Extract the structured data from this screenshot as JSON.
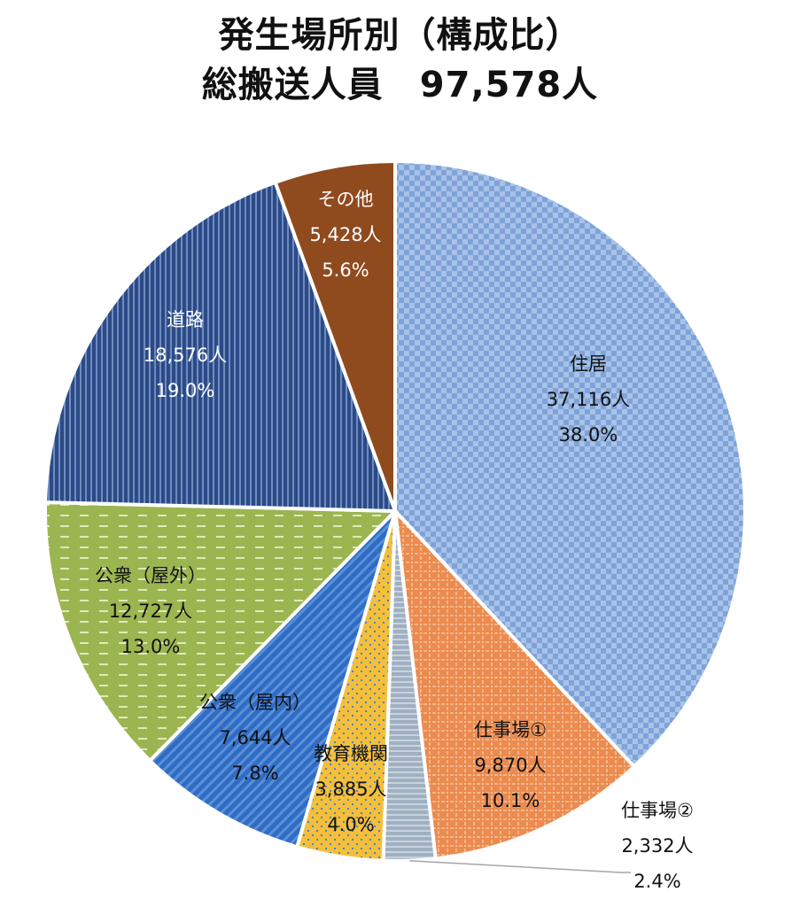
{
  "title": {
    "line1": "発生場所別（構成比）",
    "line2": "総搬送人員　97,578人"
  },
  "chart_data": {
    "type": "pie",
    "title": "発生場所別（構成比）",
    "subtitle": "総搬送人員　97,578人",
    "total": 97578,
    "unit": "人",
    "start": "12 o'clock, clockwise",
    "slices": [
      {
        "name": "住居",
        "value": 37116,
        "count_label": "37,116人",
        "percent": 38.0,
        "percent_label": "38.0%",
        "color": "#7ea3d8",
        "pattern": "checker"
      },
      {
        "name": "仕事場①",
        "value": 9870,
        "count_label": "9,870人",
        "percent": 10.1,
        "percent_label": "10.1%",
        "color": "#eb8b4f",
        "pattern": "dotted-grid"
      },
      {
        "name": "仕事場②",
        "value": 2332,
        "count_label": "2,332人",
        "percent": 2.4,
        "percent_label": "2.4%",
        "color": "#a9b3be",
        "pattern": "horizontal-lines"
      },
      {
        "name": "教育機関",
        "value": 3885,
        "count_label": "3,885人",
        "percent": 4.0,
        "percent_label": "4.0%",
        "color": "#f4bf3b",
        "pattern": "dots"
      },
      {
        "name": "公衆（屋内）",
        "value": 7644,
        "count_label": "7,644人",
        "percent": 7.8,
        "percent_label": "7.8%",
        "color": "#2f6cc4",
        "pattern": "diagonal-stripes"
      },
      {
        "name": "公衆（屋外）",
        "value": 12727,
        "count_label": "12,727人",
        "percent": 13.0,
        "percent_label": "13.0%",
        "color": "#9bb551",
        "pattern": "dashes"
      },
      {
        "name": "道路",
        "value": 18576,
        "count_label": "18,576人",
        "percent": 19.0,
        "percent_label": "19.0%",
        "color": "#2b4a86",
        "pattern": "vertical-stripes"
      },
      {
        "name": "その他",
        "value": 5428,
        "count_label": "5,428人",
        "percent": 5.6,
        "percent_label": "5.6%",
        "color": "#8f4a1e",
        "pattern": "solid"
      }
    ]
  }
}
